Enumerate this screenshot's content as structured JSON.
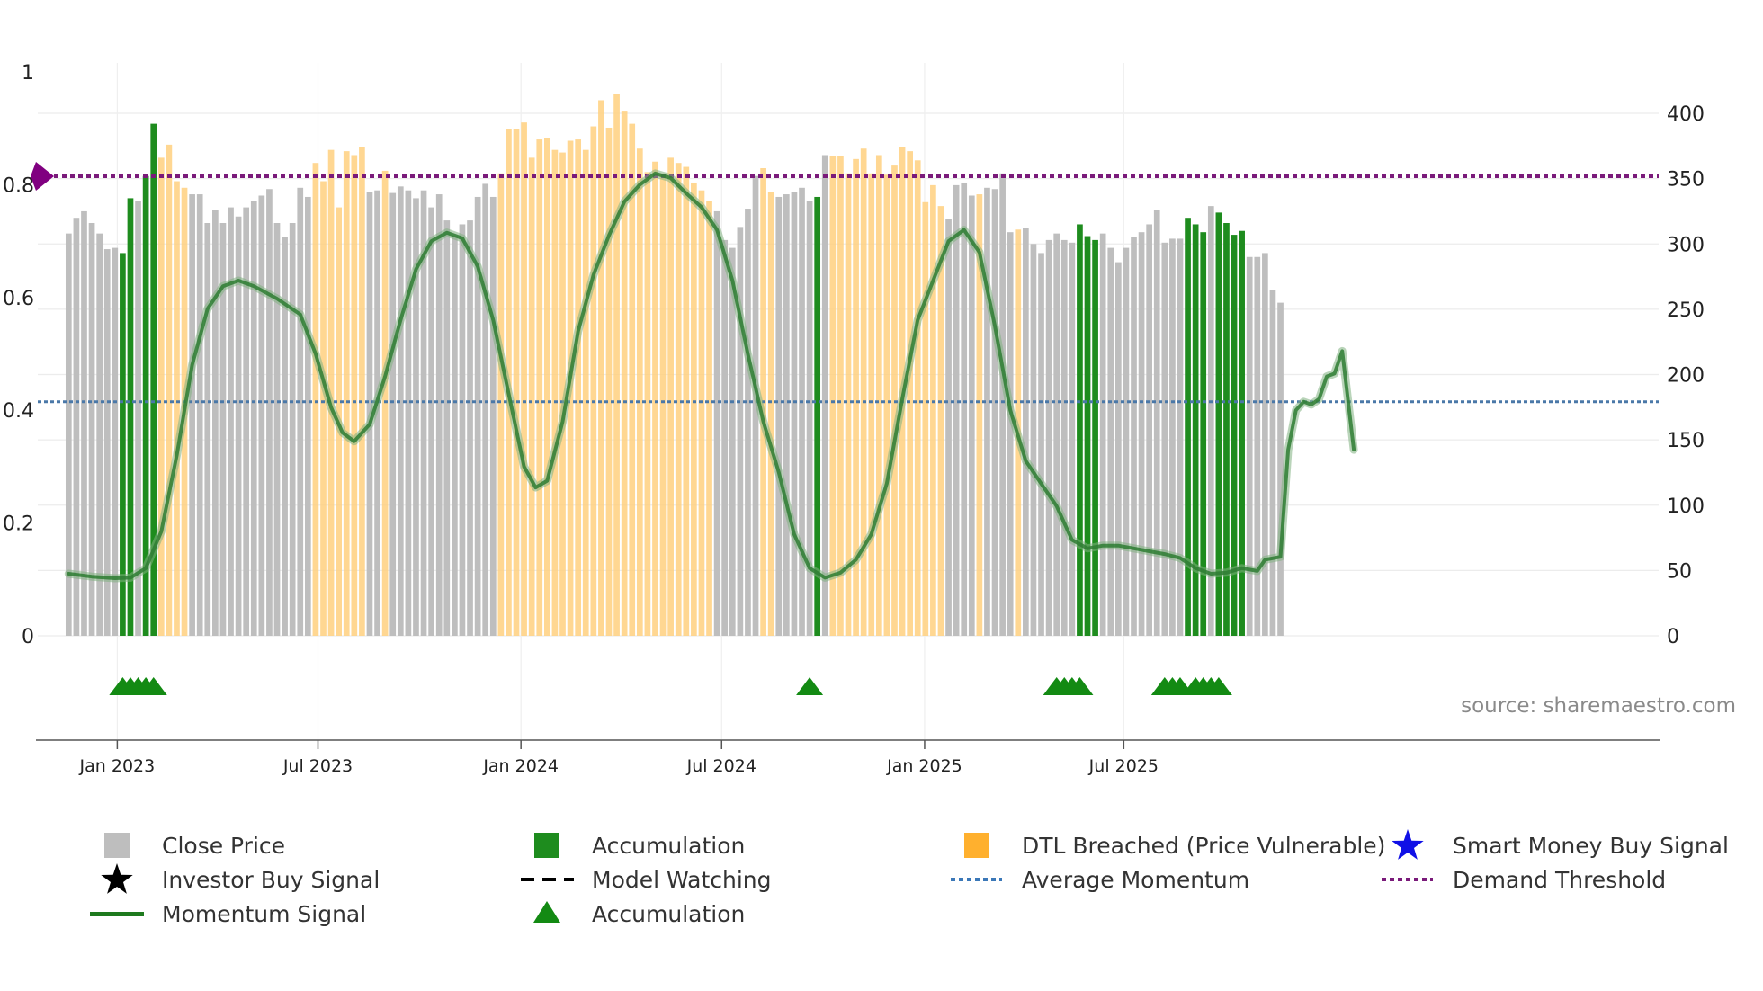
{
  "colors": {
    "close": "#bebebe",
    "accumulation": "#1e8c1e",
    "dtl": "#ffd07f",
    "momentum": "#2e7d32",
    "avg": "#4a78a8",
    "threshold": "#7a1a7a",
    "marker": "#800080",
    "triangle": "#138a13",
    "star_black": "#000000",
    "star_blue": "#1010e6"
  },
  "chart_data": {
    "type": "bar",
    "left_axis": {
      "ticks": [
        0,
        0.2,
        0.4,
        0.6,
        0.8,
        1
      ],
      "tick_labels": [
        "0",
        "0.2",
        "0.4",
        "0.6",
        "0.8",
        "1"
      ],
      "range": [
        0,
        1
      ]
    },
    "right_axis": {
      "ticks": [
        0,
        50,
        100,
        150,
        200,
        250,
        300,
        350,
        400
      ],
      "tick_labels": [
        "0",
        "50",
        "100",
        "150",
        "200",
        "250",
        "300",
        "350",
        "400"
      ],
      "range": [
        0,
        432
      ]
    },
    "x_range": [
      -4,
      206
    ],
    "x_ticks": [
      {
        "label": "Jan 2023",
        "week": 6.3
      },
      {
        "label": "Jul 2023",
        "week": 32.3
      },
      {
        "label": "Jan 2024",
        "week": 58.6
      },
      {
        "label": "Jul 2024",
        "week": 84.6
      },
      {
        "label": "Jan 2025",
        "week": 110.9
      },
      {
        "label": "Jul 2025",
        "week": 136.7
      }
    ],
    "close_price": [
      308,
      320,
      325,
      316,
      308,
      296,
      297,
      293,
      335,
      333,
      352,
      392,
      366,
      376,
      348,
      343,
      338,
      338,
      316,
      326,
      316,
      328,
      321,
      328,
      333,
      337,
      342,
      316,
      305,
      316,
      343,
      336,
      362,
      348,
      372,
      328,
      371,
      368,
      374,
      340,
      341,
      356,
      339,
      344,
      341,
      335,
      341,
      328,
      338,
      318,
      306,
      315,
      318,
      336,
      346,
      336,
      354,
      388,
      388,
      393,
      366,
      380,
      381,
      372,
      370,
      379,
      380,
      372,
      390,
      410,
      389,
      415,
      402,
      392,
      373,
      355,
      363,
      354,
      366,
      362,
      359,
      347,
      341,
      333,
      325,
      303,
      297,
      313,
      327,
      352,
      358,
      340,
      336,
      338,
      340,
      343,
      333,
      336,
      368,
      367,
      367,
      354,
      365,
      373,
      354,
      368,
      353,
      360,
      374,
      371,
      364,
      332,
      345,
      329,
      319,
      345,
      347,
      337,
      338,
      343,
      342,
      354,
      309,
      311,
      312,
      300,
      293,
      303,
      308,
      303,
      301,
      315,
      306,
      303,
      308,
      297,
      286,
      297,
      305,
      309,
      315,
      326,
      301,
      304,
      304,
      320,
      315,
      309,
      329,
      324,
      316,
      307,
      310,
      290,
      290,
      293,
      265,
      255
    ],
    "bar_category": [
      "c",
      "c",
      "c",
      "c",
      "c",
      "c",
      "c",
      "a",
      "a",
      "c",
      "a",
      "a",
      "d",
      "d",
      "d",
      "d",
      "c",
      "c",
      "c",
      "c",
      "c",
      "c",
      "c",
      "c",
      "c",
      "c",
      "c",
      "c",
      "c",
      "c",
      "c",
      "c",
      "d",
      "d",
      "d",
      "d",
      "d",
      "d",
      "d",
      "c",
      "c",
      "d",
      "c",
      "c",
      "c",
      "c",
      "c",
      "c",
      "c",
      "c",
      "c",
      "c",
      "c",
      "c",
      "c",
      "c",
      "d",
      "d",
      "d",
      "d",
      "d",
      "d",
      "d",
      "d",
      "d",
      "d",
      "d",
      "d",
      "d",
      "d",
      "d",
      "d",
      "d",
      "d",
      "d",
      "d",
      "d",
      "d",
      "d",
      "d",
      "d",
      "d",
      "d",
      "d",
      "c",
      "c",
      "c",
      "c",
      "c",
      "c",
      "d",
      "d",
      "c",
      "c",
      "c",
      "c",
      "c",
      "a",
      "c",
      "d",
      "d",
      "d",
      "d",
      "d",
      "d",
      "d",
      "d",
      "d",
      "d",
      "d",
      "d",
      "d",
      "d",
      "d",
      "c",
      "c",
      "c",
      "c",
      "d",
      "c",
      "c",
      "c",
      "c",
      "d",
      "c",
      "c",
      "c",
      "c",
      "c",
      "c",
      "c",
      "a",
      "a",
      "a",
      "c",
      "c",
      "c",
      "c",
      "c",
      "c",
      "c",
      "c",
      "c",
      "c",
      "c",
      "a",
      "a",
      "a",
      "c",
      "a",
      "a",
      "a",
      "a",
      "c",
      "c",
      "c",
      "c",
      "c"
    ],
    "momentum_signal": [
      [
        0,
        0.11
      ],
      [
        3,
        0.105
      ],
      [
        6,
        0.102
      ],
      [
        8,
        0.103
      ],
      [
        10,
        0.12
      ],
      [
        12,
        0.185
      ],
      [
        14,
        0.32
      ],
      [
        16,
        0.48
      ],
      [
        18,
        0.58
      ],
      [
        20,
        0.62
      ],
      [
        22,
        0.63
      ],
      [
        24,
        0.62
      ],
      [
        27,
        0.598
      ],
      [
        30,
        0.57
      ],
      [
        32,
        0.5
      ],
      [
        34,
        0.405
      ],
      [
        35.5,
        0.36
      ],
      [
        37,
        0.345
      ],
      [
        39,
        0.375
      ],
      [
        41,
        0.46
      ],
      [
        43,
        0.56
      ],
      [
        45,
        0.65
      ],
      [
        47,
        0.7
      ],
      [
        49,
        0.715
      ],
      [
        51,
        0.705
      ],
      [
        53,
        0.655
      ],
      [
        55,
        0.56
      ],
      [
        57,
        0.43
      ],
      [
        59,
        0.3
      ],
      [
        60.5,
        0.263
      ],
      [
        62,
        0.275
      ],
      [
        64,
        0.38
      ],
      [
        66,
        0.54
      ],
      [
        68,
        0.64
      ],
      [
        70,
        0.71
      ],
      [
        72,
        0.77
      ],
      [
        74,
        0.8
      ],
      [
        76,
        0.82
      ],
      [
        78,
        0.812
      ],
      [
        80,
        0.785
      ],
      [
        82,
        0.76
      ],
      [
        84,
        0.72
      ],
      [
        86,
        0.63
      ],
      [
        88,
        0.5
      ],
      [
        90,
        0.38
      ],
      [
        92,
        0.29
      ],
      [
        94,
        0.18
      ],
      [
        96,
        0.12
      ],
      [
        98,
        0.103
      ],
      [
        100,
        0.112
      ],
      [
        102,
        0.135
      ],
      [
        104,
        0.18
      ],
      [
        106,
        0.27
      ],
      [
        108,
        0.42
      ],
      [
        110,
        0.56
      ],
      [
        112,
        0.63
      ],
      [
        114,
        0.7
      ],
      [
        116,
        0.72
      ],
      [
        118,
        0.68
      ],
      [
        120,
        0.55
      ],
      [
        122,
        0.4
      ],
      [
        124,
        0.31
      ],
      [
        126,
        0.27
      ],
      [
        128,
        0.23
      ],
      [
        130,
        0.17
      ],
      [
        132,
        0.155
      ],
      [
        134,
        0.16
      ],
      [
        136,
        0.16
      ],
      [
        138,
        0.155
      ],
      [
        140,
        0.15
      ],
      [
        142,
        0.145
      ],
      [
        144,
        0.138
      ],
      [
        146,
        0.12
      ],
      [
        148,
        0.11
      ],
      [
        150,
        0.112
      ],
      [
        152,
        0.12
      ],
      [
        154,
        0.115
      ],
      [
        155,
        0.135
      ],
      [
        157,
        0.14
      ],
      [
        158,
        0.33
      ],
      [
        159,
        0.4
      ],
      [
        160,
        0.415
      ],
      [
        161,
        0.41
      ],
      [
        162,
        0.42
      ],
      [
        163,
        0.46
      ],
      [
        164,
        0.465
      ],
      [
        165,
        0.505
      ],
      [
        166.5,
        0.33
      ]
    ],
    "average_momentum": 0.415,
    "demand_threshold": 0.815,
    "accumulation_markers": [
      7,
      8,
      9,
      10,
      11,
      96,
      128,
      129,
      130,
      131,
      142,
      143,
      144,
      146,
      147,
      148,
      149
    ],
    "legend": {
      "close_price": "Close Price",
      "accumulation": "Accumulation",
      "dtl_breached": "DTL Breached (Price Vulnerable)",
      "smart_money": "Smart Money Buy Signal",
      "investor_buy": "Investor Buy Signal",
      "model_watching": "Model Watching",
      "average_momentum": "Average Momentum",
      "demand_threshold": "Demand Threshold",
      "momentum_signal": "Momentum Signal",
      "accumulation_markers": "Accumulation"
    }
  },
  "source_note": "source: sharemaestro.com"
}
